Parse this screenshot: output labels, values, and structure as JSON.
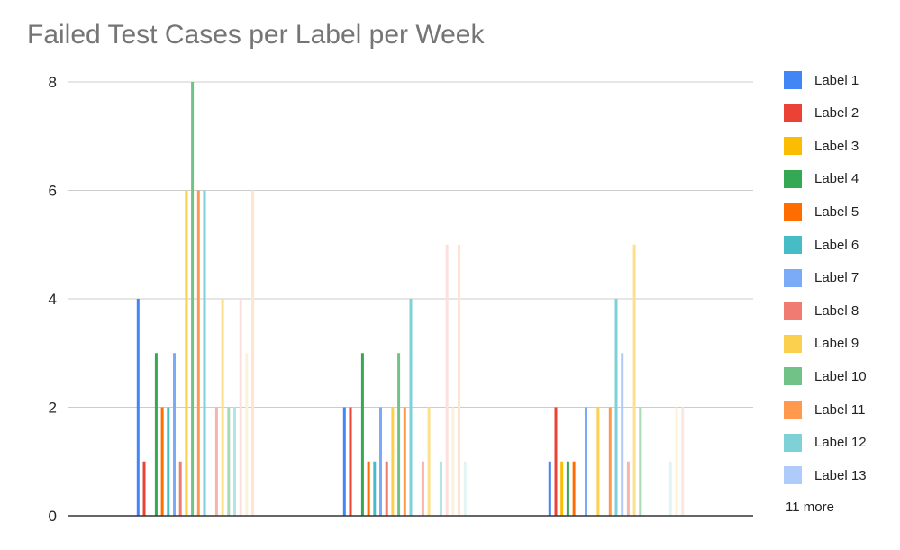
{
  "chart_data": {
    "type": "bar",
    "title": "Failed Test Cases per Label per Week",
    "xlabel": "",
    "ylabel": "",
    "ylim": [
      0,
      8
    ],
    "yticks": [
      "0",
      "2",
      "4",
      "6",
      "8"
    ],
    "grid": true,
    "legend_position": "right",
    "legend_more": "11 more",
    "group_count": 3,
    "series": [
      {
        "name": "Label 1",
        "color": "#4285f4",
        "values": [
          4,
          2,
          1
        ]
      },
      {
        "name": "Label 2",
        "color": "#ea4335",
        "values": [
          1,
          2,
          2
        ]
      },
      {
        "name": "Label 3",
        "color": "#fbbc04",
        "values": [
          0,
          0,
          1
        ]
      },
      {
        "name": "Label 4",
        "color": "#34a853",
        "values": [
          3,
          3,
          1
        ]
      },
      {
        "name": "Label 5",
        "color": "#ff6d01",
        "values": [
          2,
          1,
          1
        ]
      },
      {
        "name": "Label 6",
        "color": "#46bdc6",
        "values": [
          2,
          1,
          0
        ]
      },
      {
        "name": "Label 7",
        "color": "#7baaf7",
        "values": [
          3,
          2,
          2
        ]
      },
      {
        "name": "Label 8",
        "color": "#f07b72",
        "values": [
          1,
          1,
          0
        ]
      },
      {
        "name": "Label 9",
        "color": "#fcd04f",
        "values": [
          6,
          2,
          2
        ]
      },
      {
        "name": "Label 10",
        "color": "#71c287",
        "values": [
          8,
          3,
          0
        ]
      },
      {
        "name": "Label 11",
        "color": "#ff994d",
        "values": [
          6,
          2,
          2
        ]
      },
      {
        "name": "Label 12",
        "color": "#7ed1d7",
        "values": [
          6,
          4,
          4
        ]
      },
      {
        "name": "Label 13",
        "color": "#afcbfa",
        "values": [
          0,
          0,
          3
        ]
      },
      {
        "color": "#f7b4ae",
        "values": [
          2,
          1,
          1
        ]
      },
      {
        "color": "#fde08b",
        "values": [
          4,
          2,
          5
        ]
      },
      {
        "color": "#a7dab5",
        "values": [
          2,
          0,
          2
        ]
      },
      {
        "color": "#b3e4e8",
        "values": [
          2,
          1,
          0
        ]
      },
      {
        "color": "#fde0dd",
        "values": [
          4,
          5,
          0
        ]
      },
      {
        "color": "#fef1dc",
        "values": [
          3,
          2,
          0
        ]
      },
      {
        "color": "#ffe4d0",
        "values": [
          6,
          5,
          0
        ]
      },
      {
        "color": "#e3f4f5",
        "values": [
          0,
          1,
          1
        ]
      },
      {
        "color": "#fdf3d6",
        "values": [
          0,
          0,
          2
        ]
      },
      {
        "color": "#fde7e4",
        "values": [
          0,
          0,
          2
        ]
      }
    ]
  }
}
